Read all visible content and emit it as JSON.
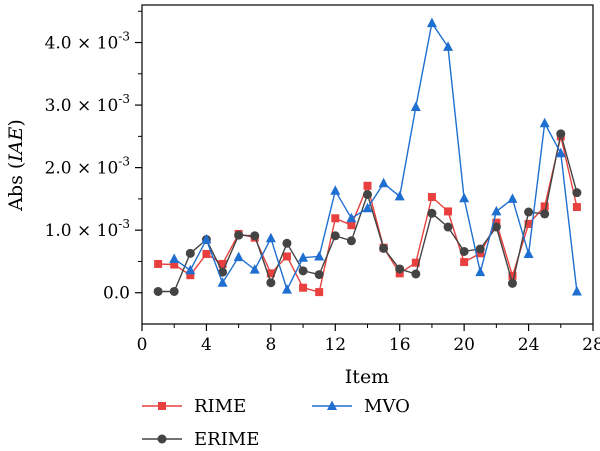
{
  "chart_data": {
    "type": "line",
    "xlabel": "Item",
    "ylabel_prefix": "Abs (",
    "ylabel_italic": "IAE",
    "ylabel_suffix": ")",
    "xlim": [
      0,
      28
    ],
    "ylim": [
      -0.0005,
      0.0046
    ],
    "xticks": [
      0,
      4,
      8,
      12,
      16,
      20,
      24,
      28
    ],
    "yticks": [
      {
        "value": 0.0,
        "mantissa": "0.0",
        "exp": ""
      },
      {
        "value": 0.001,
        "mantissa": "1.0",
        "exp": "-3"
      },
      {
        "value": 0.002,
        "mantissa": "2.0",
        "exp": "-3"
      },
      {
        "value": 0.003,
        "mantissa": "3.0",
        "exp": "-3"
      },
      {
        "value": 0.004,
        "mantissa": "4.0",
        "exp": "-3"
      }
    ],
    "tick_multiplier": "× 10",
    "x": [
      1,
      2,
      3,
      4,
      5,
      6,
      7,
      8,
      9,
      10,
      11,
      12,
      13,
      14,
      15,
      16,
      17,
      18,
      19,
      20,
      21,
      22,
      23,
      24,
      25,
      26,
      27
    ],
    "series": [
      {
        "name": "RIME",
        "color": "#e8403e",
        "marker": "square",
        "values": [
          0.00046,
          0.00045,
          0.00028,
          0.00062,
          0.00046,
          0.00094,
          0.00088,
          0.00031,
          0.00058,
          8e-05,
          1e-05,
          0.00119,
          0.00108,
          0.00171,
          0.00072,
          0.00031,
          0.00048,
          0.00153,
          0.0013,
          0.00049,
          0.00063,
          0.00112,
          0.00027,
          0.0011,
          0.00138,
          0.0025,
          0.00137
        ]
      },
      {
        "name": "ERIME",
        "color": "#444444",
        "marker": "circle",
        "values": [
          2e-05,
          2e-05,
          0.00063,
          0.00085,
          0.00033,
          0.00092,
          0.00091,
          0.00016,
          0.00079,
          0.00035,
          0.00029,
          0.00091,
          0.00083,
          0.00157,
          0.00071,
          0.00038,
          0.0003,
          0.00127,
          0.00105,
          0.00066,
          0.0007,
          0.00105,
          0.00015,
          0.00129,
          0.00126,
          0.00254,
          0.0016
        ]
      },
      {
        "name": "MVO",
        "color": "#1f6fd1",
        "marker": "triangle",
        "values": [
          null,
          0.00054,
          0.00036,
          0.00085,
          0.00016,
          0.00057,
          0.00037,
          0.00087,
          5e-05,
          0.00056,
          0.00058,
          0.00163,
          0.00119,
          0.00135,
          0.00175,
          0.00154,
          0.00297,
          0.00431,
          0.00393,
          0.00151,
          0.00033,
          0.0013,
          0.0015,
          0.00062,
          0.00271,
          0.00223,
          2e-05
        ]
      }
    ],
    "legend_placement": "bottom",
    "grid": false
  }
}
